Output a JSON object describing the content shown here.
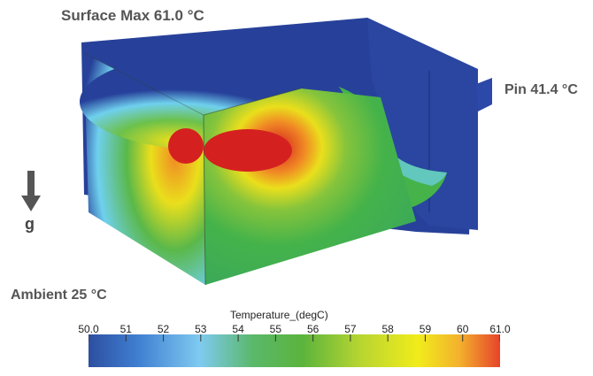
{
  "annotations": {
    "surface_max": "Surface Max 61.0 °C",
    "pin": "Pin 41.4 °C",
    "ambient": "Ambient 25 °C",
    "gravity": "g"
  },
  "colorbar": {
    "title": "Temperature_(degC)",
    "min": 50.0,
    "max": 61.0,
    "ticks": [
      "50.0",
      "51",
      "52",
      "53",
      "54",
      "55",
      "56",
      "57",
      "58",
      "59",
      "60",
      "61.0"
    ],
    "colors": [
      "#2d4fa0",
      "#3f7fd2",
      "#7fcaf0",
      "#5ab86a",
      "#5bb43c",
      "#b7d531",
      "#f1ec1b",
      "#f3b22d",
      "#e7432a"
    ]
  },
  "surface_colors": {
    "ambient_blue": "#27419a",
    "green": "#45b34a",
    "yellow": "#eadf1c",
    "orange": "#f08a24",
    "hot_red": "#d52020",
    "cyan": "#6fd0ee"
  }
}
